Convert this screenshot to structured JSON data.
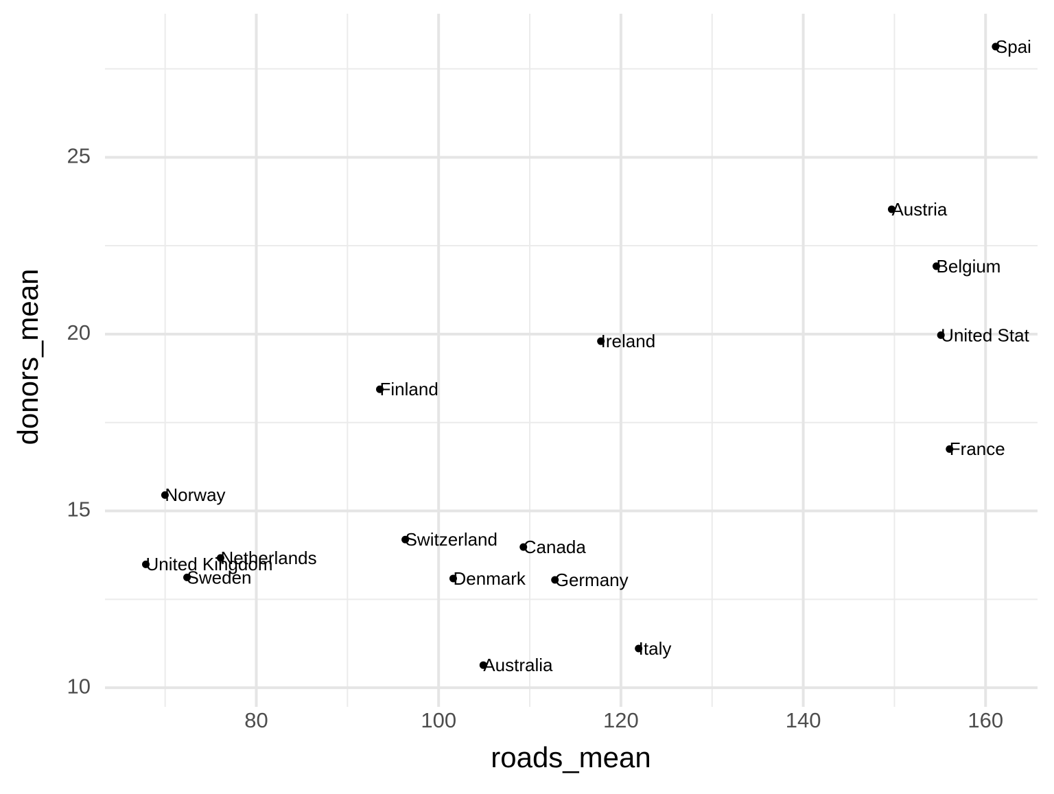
{
  "chart_data": {
    "type": "scatter",
    "x_label": "roads_mean",
    "y_label": "donors_mean",
    "xlim": [
      63.4,
      165.7
    ],
    "ylim": [
      9.46,
      29.06
    ],
    "xticks": [
      80,
      100,
      120,
      140,
      160
    ],
    "yticks": [
      10,
      15,
      20,
      25
    ],
    "grid": true,
    "color": "#000000",
    "labels": [
      "Spai",
      "Austria",
      "Belgium",
      "United Stat",
      "Ireland",
      "Finland",
      "France",
      "Norway",
      "Switzerland",
      "Canada",
      "Netherlands",
      "United Kingdom",
      "Sweden",
      "Denmark",
      "Germany",
      "Italy",
      "Australia"
    ],
    "x": [
      161.1,
      149.7,
      154.6,
      155.1,
      117.8,
      93.55,
      156.05,
      69.98,
      96.34,
      109.3,
      76.08,
      67.88,
      72.4,
      101.6,
      112.76,
      121.94,
      104.9
    ],
    "values": [
      28.13,
      23.53,
      21.92,
      19.97,
      19.8,
      18.44,
      16.75,
      15.45,
      14.19,
      13.98,
      13.67,
      13.49,
      13.12,
      13.09,
      13.05,
      11.11,
      10.64
    ]
  }
}
